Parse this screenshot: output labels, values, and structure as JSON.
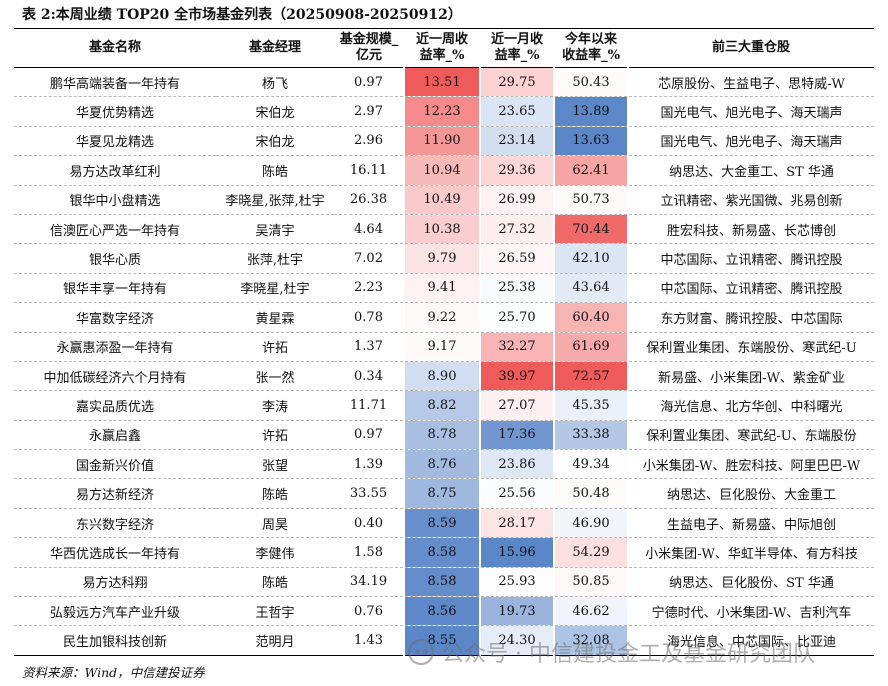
{
  "caption": "表 2:本周业绩 TOP20 全市场基金列表（20250908-20250912）",
  "headers": {
    "name": "基金名称",
    "manager": "基金经理",
    "size_l1": "基金规模_",
    "size_l2": "亿元",
    "week_l1": "近一周收",
    "week_l2": "益率_%",
    "month_l1": "近一月收",
    "month_l2": "益率_%",
    "ytd_l1": "今年以来",
    "ytd_l2": "收益率_%",
    "holdings": "前三大重仓股"
  },
  "colors": {
    "red_strong": "#ef5b5b",
    "blue_strong": "#5b86c8",
    "white": "#ffffff"
  },
  "rows": [
    {
      "name": "鹏华高端装备一年持有",
      "manager": "杨飞",
      "size": "0.97",
      "week": "13.51",
      "month": "29.75",
      "ytd": "50.43",
      "holdings": "芯原股份、生益电子、思特威-W"
    },
    {
      "name": "华夏优势精选",
      "manager": "宋伯龙",
      "size": "2.97",
      "week": "12.23",
      "month": "23.65",
      "ytd": "13.89",
      "holdings": "国光电气、旭光电子、海天瑞声"
    },
    {
      "name": "华夏见龙精选",
      "manager": "宋伯龙",
      "size": "2.96",
      "week": "11.90",
      "month": "23.14",
      "ytd": "13.63",
      "holdings": "国光电气、旭光电子、海天瑞声"
    },
    {
      "name": "易方达改革红利",
      "manager": "陈皓",
      "size": "16.11",
      "week": "10.94",
      "month": "29.36",
      "ytd": "62.41",
      "holdings": "纳思达、大金重工、ST 华通"
    },
    {
      "name": "银华中小盘精选",
      "manager": "李晓星,张萍,杜宇",
      "size": "26.38",
      "week": "10.49",
      "month": "26.99",
      "ytd": "50.73",
      "holdings": "立讯精密、紫光国微、兆易创新"
    },
    {
      "name": "信澳匠心严选一年持有",
      "manager": "吴清宇",
      "size": "4.64",
      "week": "10.38",
      "month": "27.32",
      "ytd": "70.44",
      "holdings": "胜宏科技、新易盛、长芯博创"
    },
    {
      "name": "银华心质",
      "manager": "张萍,杜宇",
      "size": "7.02",
      "week": "9.79",
      "month": "26.59",
      "ytd": "42.10",
      "holdings": "中芯国际、立讯精密、腾讯控股"
    },
    {
      "name": "银华丰享一年持有",
      "manager": "李晓星,杜宇",
      "size": "2.23",
      "week": "9.41",
      "month": "25.38",
      "ytd": "43.64",
      "holdings": "中芯国际、立讯精密、腾讯控股"
    },
    {
      "name": "华富数字经济",
      "manager": "黄星霖",
      "size": "0.78",
      "week": "9.22",
      "month": "25.70",
      "ytd": "60.40",
      "holdings": "东方财富、腾讯控股、中芯国际"
    },
    {
      "name": "永赢惠添盈一年持有",
      "manager": "许拓",
      "size": "1.37",
      "week": "9.17",
      "month": "32.27",
      "ytd": "61.69",
      "holdings": "保利置业集团、东端股份、寒武纪-U"
    },
    {
      "name": "中加低碳经济六个月持有",
      "manager": "张一然",
      "size": "0.34",
      "week": "8.90",
      "month": "39.97",
      "ytd": "72.57",
      "holdings": "新易盛、小米集团-W、紫金矿业"
    },
    {
      "name": "嘉实品质优选",
      "manager": "李涛",
      "size": "11.71",
      "week": "8.82",
      "month": "27.07",
      "ytd": "45.35",
      "holdings": "海光信息、北方华创、中科曙光"
    },
    {
      "name": "永赢启鑫",
      "manager": "许拓",
      "size": "0.97",
      "week": "8.78",
      "month": "17.36",
      "ytd": "33.38",
      "holdings": "保利置业集团、寒武纪-U、东端股份"
    },
    {
      "name": "国金新兴价值",
      "manager": "张望",
      "size": "1.39",
      "week": "8.76",
      "month": "23.86",
      "ytd": "49.34",
      "holdings": "小米集团-W、胜宏科技、阿里巴巴-W"
    },
    {
      "name": "易方达新经济",
      "manager": "陈皓",
      "size": "33.55",
      "week": "8.75",
      "month": "25.56",
      "ytd": "50.48",
      "holdings": "纳思达、巨化股份、大金重工"
    },
    {
      "name": "东兴数字经济",
      "manager": "周昊",
      "size": "0.40",
      "week": "8.59",
      "month": "28.17",
      "ytd": "46.90",
      "holdings": "生益电子、新易盛、中际旭创"
    },
    {
      "name": "华西优选成长一年持有",
      "manager": "李健伟",
      "size": "1.58",
      "week": "8.58",
      "month": "15.96",
      "ytd": "54.29",
      "holdings": "小米集团-W、华虹半导体、有方科技"
    },
    {
      "name": "易方达科翔",
      "manager": "陈皓",
      "size": "34.19",
      "week": "8.58",
      "month": "25.93",
      "ytd": "50.85",
      "holdings": "纳思达、巨化股份、ST 华通"
    },
    {
      "name": "弘毅远方汽车产业升级",
      "manager": "王哲宇",
      "size": "0.76",
      "week": "8.56",
      "month": "19.73",
      "ytd": "46.62",
      "holdings": "宁德时代、小米集团-W、吉利汽车"
    },
    {
      "name": "民生加银科技创新",
      "manager": "范明月",
      "size": "1.43",
      "week": "8.55",
      "month": "24.30",
      "ytd": "32.08",
      "holdings": "海光信息、中芯国际、比亚迪"
    }
  ],
  "source": "资料来源：Wind，中信建投证券",
  "watermark": "公众号 · 中信建投金工及基金研究团队"
}
